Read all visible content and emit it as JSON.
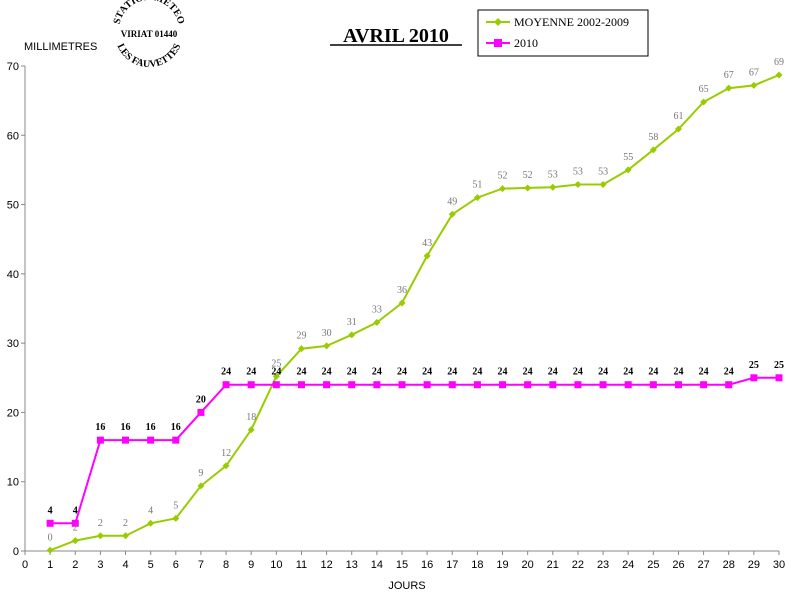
{
  "logo": {
    "top": "STATION METEO",
    "middle": "VIRIAT 01440",
    "bottom": "LES FAUVETTES"
  },
  "chart_data": {
    "type": "line",
    "title": "AVRIL 2010",
    "xlabel": "JOURS",
    "ylabel": "MILLIMETRES",
    "xlim": [
      0,
      30
    ],
    "ylim": [
      0,
      70
    ],
    "x_ticks": [
      0,
      1,
      2,
      3,
      4,
      5,
      6,
      7,
      8,
      9,
      10,
      11,
      12,
      13,
      14,
      15,
      16,
      17,
      18,
      19,
      20,
      21,
      22,
      23,
      24,
      25,
      26,
      27,
      28,
      29,
      30
    ],
    "y_ticks": [
      0,
      10,
      20,
      30,
      40,
      50,
      60,
      70
    ],
    "grid": false,
    "legend_position": "top-right",
    "x": [
      1,
      2,
      3,
      4,
      5,
      6,
      7,
      8,
      9,
      10,
      11,
      12,
      13,
      14,
      15,
      16,
      17,
      18,
      19,
      20,
      21,
      22,
      23,
      24,
      25,
      26,
      27,
      28,
      29,
      30
    ],
    "series": [
      {
        "name": "MOYENNE 2002-2009",
        "color": "#99cc00",
        "marker": "diamond",
        "values": [
          0.1,
          1.5,
          2.2,
          2.2,
          4.0,
          4.7,
          9.4,
          12.3,
          17.5,
          25.2,
          29.2,
          29.6,
          31.2,
          33.0,
          35.8,
          42.6,
          48.6,
          51.0,
          52.3,
          52.4,
          52.5,
          52.9,
          52.9,
          55.0,
          57.9,
          60.9,
          64.8,
          66.8,
          67.2,
          68.7
        ],
        "labels": [
          "0",
          "2",
          "2",
          "2",
          "4",
          "5",
          "9",
          "12",
          "18",
          "25",
          "29",
          "30",
          "31",
          "33",
          "36",
          "43",
          "49",
          "51",
          "52",
          "52",
          "53",
          "53",
          "53",
          "55",
          "58",
          "61",
          "65",
          "67",
          "67",
          "69"
        ]
      },
      {
        "name": "2010",
        "color": "#ff00ff",
        "marker": "square",
        "values": [
          4,
          4,
          16,
          16,
          16,
          16,
          20,
          24,
          24,
          24,
          24,
          24,
          24,
          24,
          24,
          24,
          24,
          24,
          24,
          24,
          24,
          24,
          24,
          24,
          24,
          24,
          24,
          24,
          25,
          25
        ],
        "labels": [
          "4",
          "4",
          "16",
          "16",
          "16",
          "16",
          "20",
          "24",
          "24",
          "24",
          "24",
          "24",
          "24",
          "24",
          "24",
          "24",
          "24",
          "24",
          "24",
          "24",
          "24",
          "24",
          "24",
          "24",
          "24",
          "24",
          "24",
          "24",
          "25",
          "25"
        ]
      }
    ]
  }
}
